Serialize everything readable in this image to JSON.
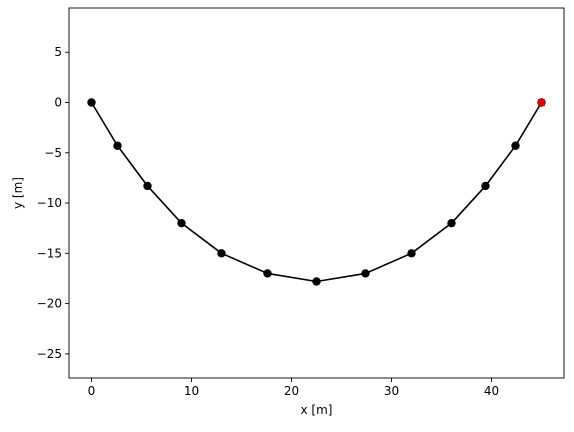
{
  "chart_data": {
    "type": "line",
    "title": "",
    "xlabel": "x [m]",
    "ylabel": "y [m]",
    "xlim": [
      -2.25,
      47.25
    ],
    "ylim": [
      -27.4,
      9.4
    ],
    "grid": false,
    "x_ticks": [
      0,
      10,
      20,
      30,
      40
    ],
    "y_ticks": [
      5,
      0,
      -5,
      -10,
      -15,
      -20,
      -25
    ],
    "x_tick_labels": [
      "0",
      "10",
      "20",
      "30",
      "40"
    ],
    "y_tick_labels": [
      "5",
      "0",
      "−5",
      "−10",
      "−15",
      "−20",
      "−25"
    ],
    "series": [
      {
        "color": "#000000",
        "marker": "circle",
        "x": [
          0,
          2.6,
          5.6,
          9.0,
          13.0,
          17.6,
          22.5,
          27.4,
          32.0,
          36.0,
          39.4,
          42.4,
          45.0
        ],
        "y": [
          0,
          -4.3,
          -8.3,
          -12.0,
          -15.0,
          -17.0,
          -17.8,
          -17.0,
          -15.0,
          -12.0,
          -8.3,
          -4.3,
          0
        ]
      },
      {
        "color": "#ff0000",
        "marker": "square",
        "x": [
          45.0
        ],
        "y": [
          0.0
        ]
      }
    ]
  }
}
